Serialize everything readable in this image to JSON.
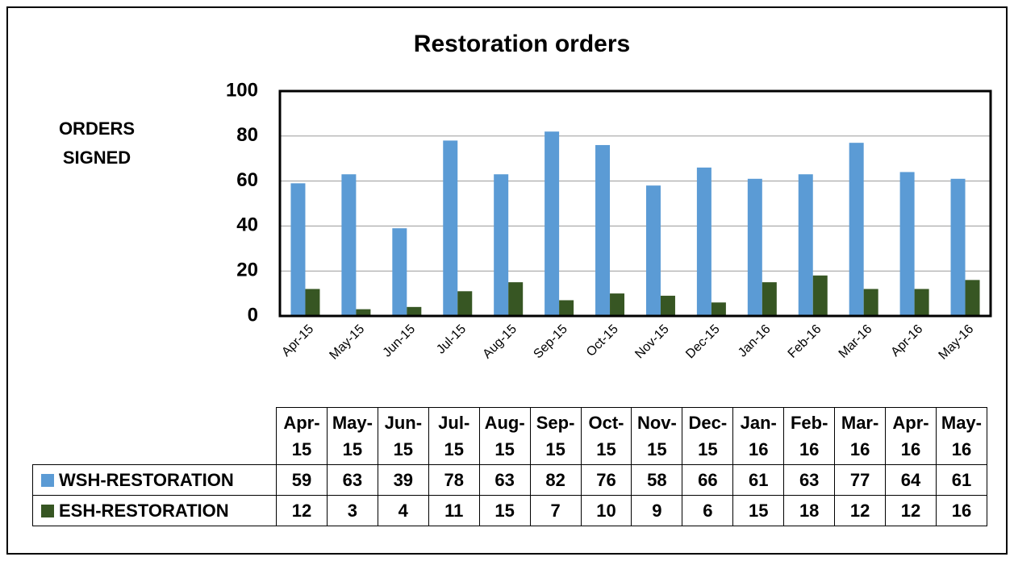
{
  "chart_data": {
    "type": "bar",
    "title": "Restoration orders",
    "y_label": "ORDERS SIGNED",
    "categories": [
      "Apr-15",
      "May-15",
      "Jun-15",
      "Jul-15",
      "Aug-15",
      "Sep-15",
      "Oct-15",
      "Nov-15",
      "Dec-15",
      "Jan-16",
      "Feb-16",
      "Mar-16",
      "Apr-16",
      "May-16"
    ],
    "series": [
      {
        "name": "WSH-RESTORATION",
        "color": "#5b9bd5",
        "values": [
          59,
          63,
          39,
          78,
          63,
          82,
          76,
          58,
          66,
          61,
          63,
          77,
          64,
          61
        ]
      },
      {
        "name": "ESH-RESTORATION",
        "color": "#375623",
        "values": [
          12,
          3,
          4,
          11,
          15,
          7,
          10,
          9,
          6,
          15,
          18,
          12,
          12,
          16
        ]
      }
    ],
    "ylim": [
      0,
      100
    ],
    "yticks": [
      0,
      20,
      40,
      60,
      80,
      100
    ],
    "grid": true
  }
}
